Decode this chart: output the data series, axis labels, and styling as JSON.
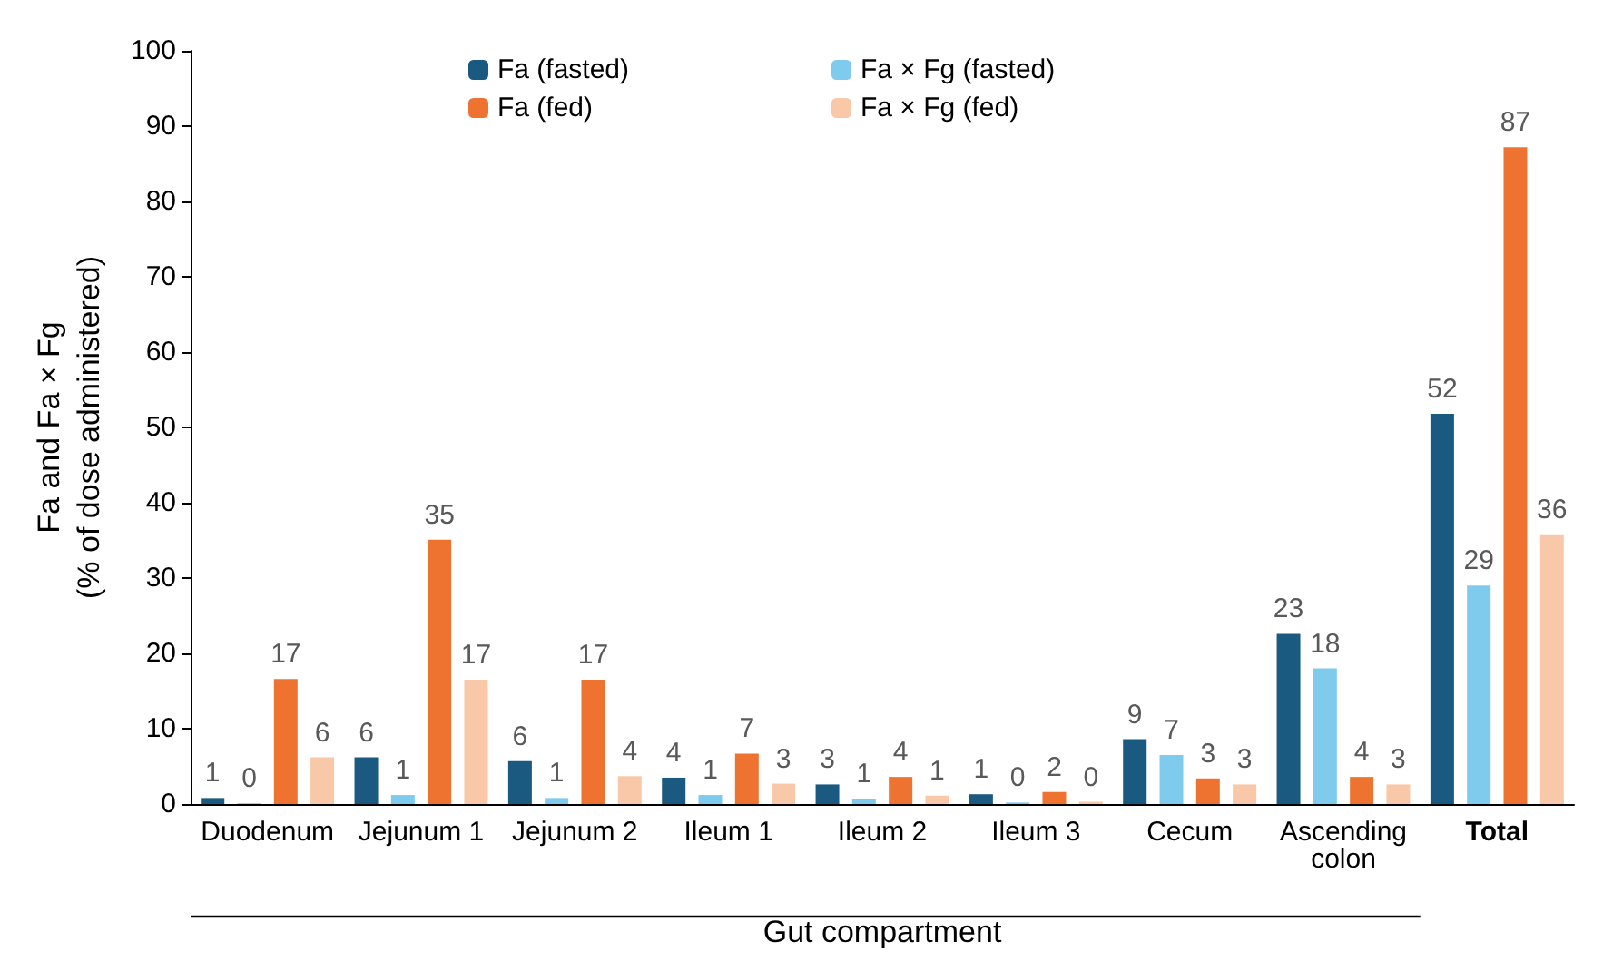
{
  "chart_data": {
    "type": "bar",
    "xlabel": "Gut compartment",
    "ylabel": "Fa and Fa × Fg\n(% of dose administered)",
    "categories": [
      "Duodenum",
      "Jejunum 1",
      "Jejunum 2",
      "Ileum 1",
      "Ileum 2",
      "Ileum 3",
      "Cecum",
      "Ascending\ncolon",
      "Total"
    ],
    "series": [
      {
        "name": "Fa (fasted)",
        "color": "#1b5a80",
        "values": [
          0.8,
          6.2,
          5.7,
          3.5,
          2.6,
          1.3,
          8.6,
          22.6,
          51.8
        ],
        "value_labels": [
          "1",
          "6",
          "6",
          "4",
          "3",
          "1",
          "9",
          "23",
          "52"
        ]
      },
      {
        "name": "Fa × Fg (fasted)",
        "color": "#7ecbee",
        "values": [
          0.1,
          1.2,
          0.8,
          1.2,
          0.7,
          0.2,
          6.5,
          18,
          29
        ],
        "value_labels": [
          "0",
          "1",
          "1",
          "1",
          "1",
          "0",
          "7",
          "18",
          "29"
        ]
      },
      {
        "name": "Fa (fed)",
        "color": "#ee7330",
        "values": [
          16.6,
          35.1,
          16.5,
          6.7,
          3.6,
          1.6,
          3.4,
          3.6,
          87.2
        ],
        "value_labels": [
          "17",
          "35",
          "17",
          "7",
          "4",
          "2",
          "3",
          "4",
          "87"
        ]
      },
      {
        "name": "Fa × Fg (fed)",
        "color": "#f8c8a8",
        "values": [
          6.2,
          16.5,
          3.7,
          2.7,
          1.1,
          0.3,
          2.6,
          2.6,
          35.8
        ],
        "value_labels": [
          "6",
          "17",
          "4",
          "3",
          "1",
          "0",
          "3",
          "3",
          "36"
        ]
      }
    ],
    "ylim": [
      0,
      100
    ],
    "yticks": [
      0,
      10,
      20,
      30,
      40,
      50,
      60,
      70,
      80,
      90,
      100
    ],
    "grid": false,
    "legend": "top"
  }
}
